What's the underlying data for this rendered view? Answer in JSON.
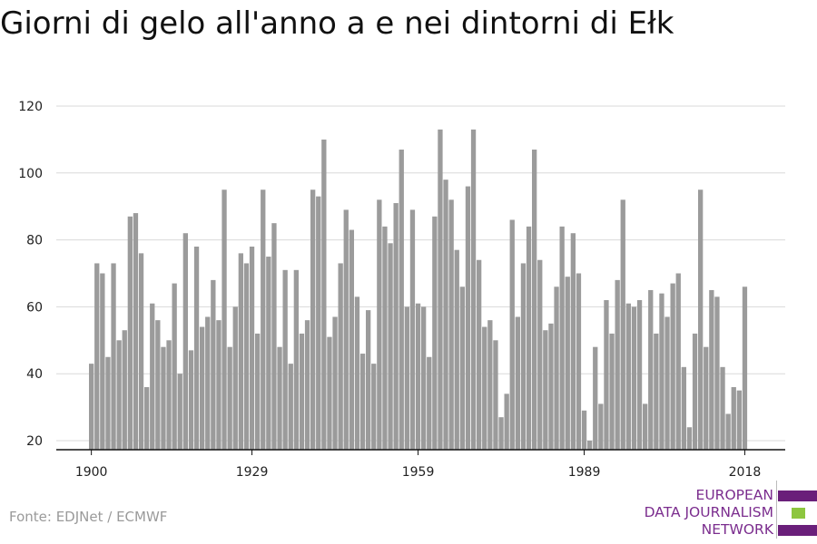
{
  "title": "Giorni di gelo all'anno a e nei dintorni di Ełk",
  "source": "Fonte: EDJNet / ECMWF",
  "logo": {
    "lines": [
      "EUROPEAN",
      "DATA JOURNALISM",
      "NETWORK"
    ],
    "text_color": "#7b2d8e",
    "bar_colors": [
      "#6a1f7a",
      "#8dc63f",
      "#6a1f7a"
    ]
  },
  "colors": {
    "bar": "#9b9b9b",
    "grid": "#d9d9d9",
    "axis": "#111111"
  },
  "chart_data": {
    "type": "bar",
    "title": "Giorni di gelo all'anno a e nei dintorni di Ełk",
    "xlabel": "",
    "ylabel": "",
    "ylim": [
      20,
      120
    ],
    "y_ticks": [
      20,
      40,
      60,
      80,
      100,
      120
    ],
    "x_ticks": [
      1900,
      1929,
      1959,
      1989,
      2018
    ],
    "grid": true,
    "x_start": 1900,
    "values": [
      43,
      73,
      70,
      45,
      73,
      50,
      53,
      87,
      88,
      76,
      36,
      61,
      56,
      48,
      50,
      67,
      40,
      82,
      47,
      78,
      54,
      57,
      68,
      56,
      95,
      48,
      60,
      76,
      73,
      78,
      52,
      95,
      75,
      85,
      48,
      71,
      43,
      71,
      52,
      56,
      95,
      93,
      110,
      51,
      57,
      73,
      89,
      83,
      63,
      46,
      59,
      43,
      92,
      84,
      79,
      91,
      107,
      60,
      89,
      61,
      60,
      45,
      87,
      113,
      98,
      92,
      77,
      66,
      96,
      113,
      74,
      54,
      56,
      50,
      27,
      34,
      86,
      57,
      73,
      84,
      107,
      74,
      53,
      55,
      66,
      84,
      69,
      82,
      70,
      29,
      20,
      48,
      31,
      62,
      52,
      68,
      92,
      61,
      60,
      62,
      31,
      65,
      52,
      64,
      57,
      67,
      70,
      42,
      24,
      52,
      95,
      48,
      65,
      63,
      42,
      28,
      36,
      35,
      66
    ]
  }
}
